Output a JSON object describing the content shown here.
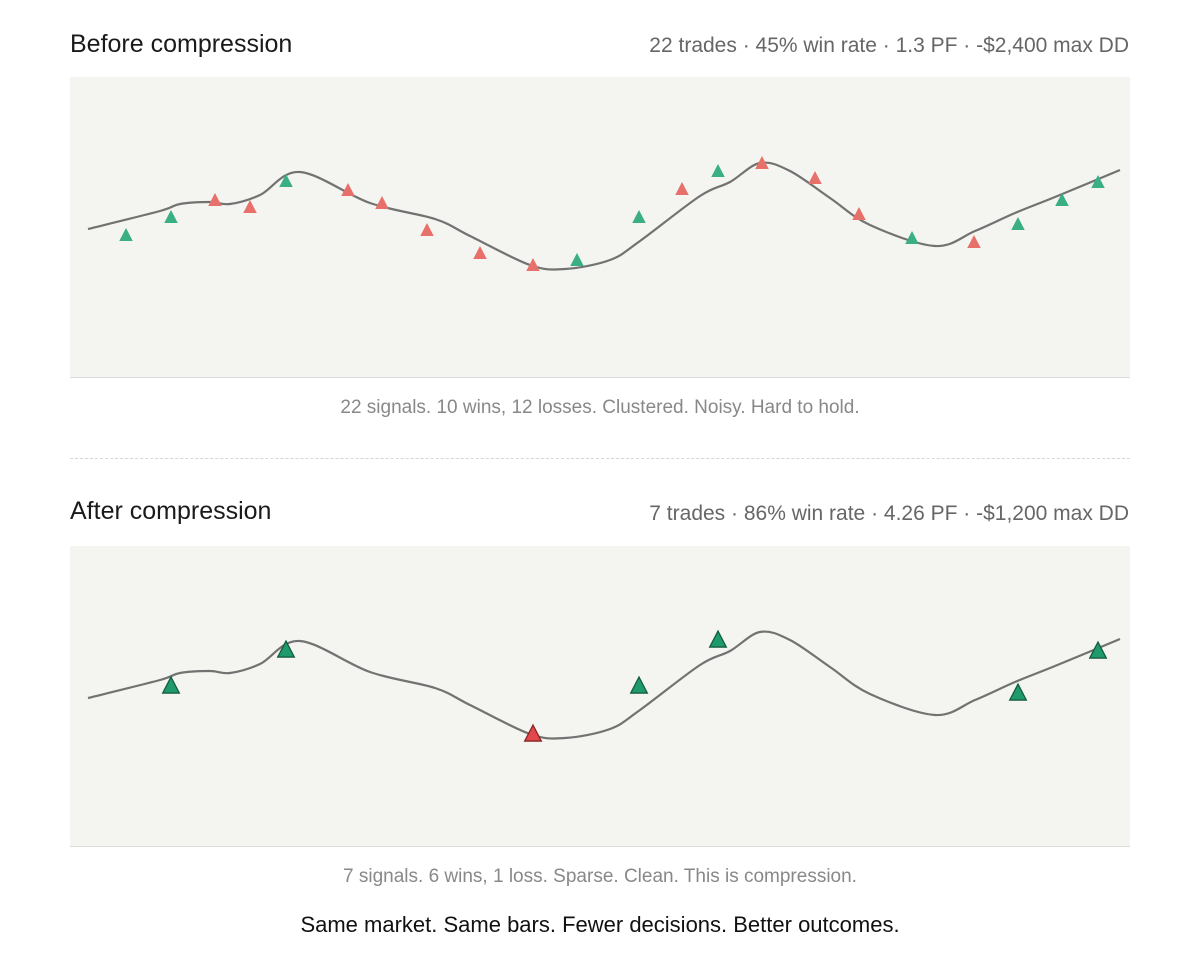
{
  "colors": {
    "win": "#3aae85",
    "loss": "#e8706b",
    "win_emph": "#1f9a6c",
    "loss_emph": "#e0484b",
    "line": "#727272",
    "panel_bg": "#f4f5f0"
  },
  "footer": "Same market. Same bars. Fewer decisions. Better outcomes.",
  "chart_data": [
    {
      "type": "line",
      "title": "Before compression",
      "subtitle": "22 trades · 45% win rate · 1.3 PF · -$2,400 max DD",
      "caption": "22 signals. 10 wins, 12 losses. Clustered. Noisy. Hard to hold.",
      "grid": false,
      "xlim": [
        0,
        1060
      ],
      "ylim": [
        0,
        300
      ],
      "price_line": {
        "x": [
          18,
          90,
          110,
          140,
          160,
          190,
          230,
          300,
          365,
          400,
          460,
          495,
          540,
          570,
          630,
          660,
          690,
          720,
          760,
          800,
          865,
          905,
          945,
          985,
          1050
        ],
        "y": [
          148,
          166,
          173,
          175,
          173,
          182,
          205,
          174,
          158,
          141,
          112,
          108,
          117,
          136,
          181,
          195,
          214,
          206,
          179,
          152,
          131,
          146,
          164,
          180,
          207
        ]
      },
      "markers": [
        {
          "x": 56,
          "y": 141,
          "result": "win"
        },
        {
          "x": 101,
          "y": 159,
          "result": "win"
        },
        {
          "x": 145,
          "y": 176,
          "result": "loss"
        },
        {
          "x": 180,
          "y": 169,
          "result": "loss"
        },
        {
          "x": 216,
          "y": 195,
          "result": "win"
        },
        {
          "x": 278,
          "y": 186,
          "result": "loss"
        },
        {
          "x": 312,
          "y": 173,
          "result": "loss"
        },
        {
          "x": 357,
          "y": 146,
          "result": "loss"
        },
        {
          "x": 410,
          "y": 123,
          "result": "loss"
        },
        {
          "x": 463,
          "y": 111,
          "result": "loss"
        },
        {
          "x": 507,
          "y": 116,
          "result": "win"
        },
        {
          "x": 569,
          "y": 159,
          "result": "win"
        },
        {
          "x": 612,
          "y": 187,
          "result": "loss"
        },
        {
          "x": 648,
          "y": 205,
          "result": "win"
        },
        {
          "x": 692,
          "y": 213,
          "result": "loss"
        },
        {
          "x": 745,
          "y": 198,
          "result": "loss"
        },
        {
          "x": 789,
          "y": 162,
          "result": "loss"
        },
        {
          "x": 842,
          "y": 138,
          "result": "win"
        },
        {
          "x": 904,
          "y": 134,
          "result": "loss"
        },
        {
          "x": 948,
          "y": 152,
          "result": "win"
        },
        {
          "x": 992,
          "y": 176,
          "result": "win"
        },
        {
          "x": 1028,
          "y": 194,
          "result": "win"
        }
      ]
    },
    {
      "type": "line",
      "title": "After compression",
      "subtitle": "7 trades · 86% win rate · 4.26 PF · -$1,200 max DD",
      "caption": "7 signals. 6 wins, 1 loss. Sparse. Clean. This is compression.",
      "grid": false,
      "xlim": [
        0,
        1060
      ],
      "ylim": [
        0,
        300
      ],
      "price_line": {
        "x": [
          18,
          90,
          110,
          140,
          160,
          190,
          230,
          300,
          365,
          400,
          460,
          495,
          540,
          570,
          630,
          660,
          690,
          720,
          760,
          800,
          865,
          905,
          945,
          985,
          1050
        ],
        "y": [
          148,
          166,
          173,
          175,
          173,
          182,
          205,
          174,
          158,
          141,
          112,
          108,
          117,
          136,
          181,
          195,
          214,
          206,
          179,
          152,
          131,
          146,
          164,
          180,
          207
        ]
      },
      "markers": [
        {
          "x": 101,
          "y": 159,
          "result": "win"
        },
        {
          "x": 216,
          "y": 195,
          "result": "win"
        },
        {
          "x": 463,
          "y": 111,
          "result": "loss"
        },
        {
          "x": 569,
          "y": 159,
          "result": "win"
        },
        {
          "x": 648,
          "y": 205,
          "result": "win"
        },
        {
          "x": 948,
          "y": 152,
          "result": "win"
        },
        {
          "x": 1028,
          "y": 194,
          "result": "win"
        }
      ]
    }
  ]
}
